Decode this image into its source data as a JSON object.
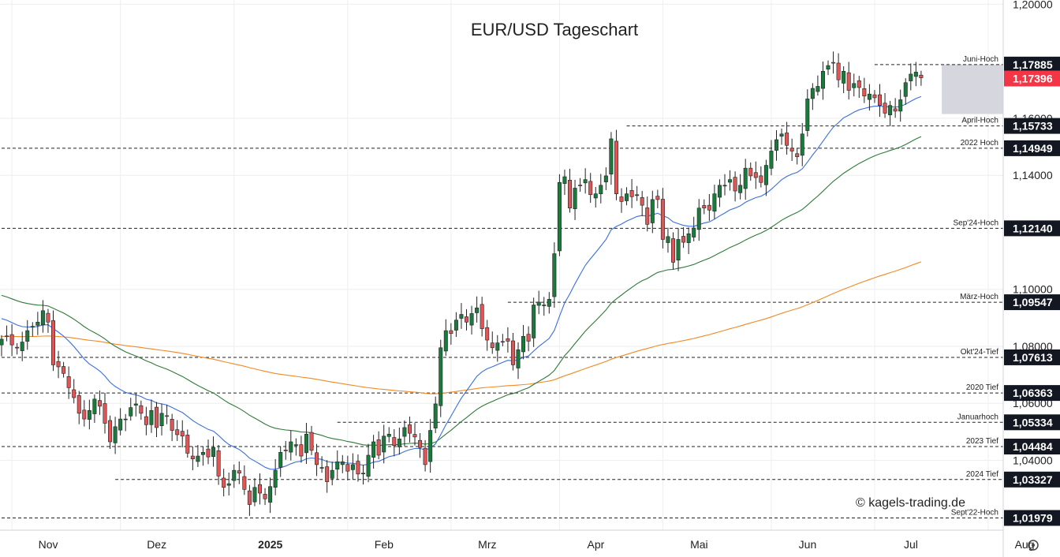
{
  "chart_data": {
    "type": "candlestick",
    "title": "EUR/USD Tageschart",
    "copyright": "© kagels-trading.de",
    "colors": {
      "up": "#1a7a3c",
      "down": "#e05656",
      "ema20": "#3a6fdc",
      "ema50": "#2f7a38",
      "ema200": "#f08a24",
      "zone": "#cfd0d8",
      "current_badge": "#f23645",
      "level_badge": "#131722"
    },
    "ylim": [
      1.0155,
      1.2015
    ],
    "y_ticks": [
      "1,20000",
      "1,16000",
      "1,14000",
      "1,10000",
      "1,08000",
      "1,06000",
      "1,04000"
    ],
    "y_tick_values": [
      1.2,
      1.16,
      1.14,
      1.1,
      1.08,
      1.06,
      1.04
    ],
    "x_ticks": [
      {
        "label": "Nov",
        "index": 2,
        "bold": false
      },
      {
        "label": "Dez",
        "index": 23,
        "bold": false
      },
      {
        "label": "2025",
        "index": 45,
        "bold": true
      },
      {
        "label": "Feb",
        "index": 67,
        "bold": false
      },
      {
        "label": "Mrz",
        "index": 87,
        "bold": false
      },
      {
        "label": "Apr",
        "index": 108,
        "bold": false
      },
      {
        "label": "Mai",
        "index": 128,
        "bold": false
      },
      {
        "label": "Jun",
        "index": 149,
        "bold": false
      },
      {
        "label": "Jul",
        "index": 169,
        "bold": false
      },
      {
        "label": "Aug",
        "index": 191,
        "bold": false
      }
    ],
    "current_price": {
      "value": 1.17396,
      "label": "1,17396"
    },
    "zone": {
      "from_index": 182,
      "y_top": 1.17885,
      "y_bottom": 1.1615
    },
    "levels": [
      {
        "name": "Juni-Hoch",
        "value": 1.17885,
        "label": "1,17885",
        "from_index": 169
      },
      {
        "name": "April-Hoch",
        "value": 1.15733,
        "label": "1,15733",
        "from_index": 121
      },
      {
        "name": "2022 Hoch",
        "value": 1.14949,
        "label": "1,14949",
        "from_index": 0
      },
      {
        "name": "Sep'24-Hoch",
        "value": 1.1214,
        "label": "1,12140",
        "from_index": 0
      },
      {
        "name": "März-Hoch",
        "value": 1.09547,
        "label": "1,09547",
        "from_index": 98
      },
      {
        "name": "Okt'24-Tief",
        "value": 1.07613,
        "label": "1,07613",
        "from_index": 0
      },
      {
        "name": "2020 Tief",
        "value": 1.06363,
        "label": "1,06363",
        "from_index": 0
      },
      {
        "name": "Januarhoch",
        "value": 1.05334,
        "label": "1,05334",
        "from_index": 65
      },
      {
        "name": "2023 Tief",
        "value": 1.04484,
        "label": "1,04484",
        "from_index": 0
      },
      {
        "name": "2024 Tief",
        "value": 1.03327,
        "label": "1,03327",
        "from_index": 22
      },
      {
        "name": "Sept'22-Hoch",
        "value": 1.01979,
        "label": "1,01979",
        "from_index": 0
      }
    ],
    "closes": [
      1.0825,
      1.0835,
      1.0805,
      1.0795,
      1.0815,
      1.0855,
      1.087,
      1.0885,
      1.0925,
      1.0885,
      1.0735,
      1.0728,
      1.0705,
      1.0655,
      1.062,
      1.0565,
      1.0545,
      1.0575,
      1.0615,
      1.059,
      1.053,
      1.0465,
      1.0518,
      1.0545,
      1.0545,
      1.0585,
      1.0598,
      1.0565,
      1.0525,
      1.0575,
      1.0515,
      1.0565,
      1.0555,
      1.0505,
      1.049,
      1.0485,
      1.0425,
      1.0405,
      1.0415,
      1.0428,
      1.0412,
      1.0445,
      1.0345,
      1.0305,
      1.0318,
      1.0365,
      1.0355,
      1.0298,
      1.0245,
      1.0305,
      1.0285,
      1.0265,
      1.0308,
      1.0365,
      1.0428,
      1.0435,
      1.0465,
      1.0455,
      1.0415,
      1.0492,
      1.0435,
      1.0385,
      1.0375,
      1.0325,
      1.0365,
      1.0395,
      1.0395,
      1.0362,
      1.0385,
      1.0352,
      1.0355,
      1.0418,
      1.0465,
      1.0418,
      1.0485,
      1.0492,
      1.0452,
      1.0475,
      1.0515,
      1.0495,
      1.0482,
      1.0445,
      1.0385,
      1.0505,
      1.0598,
      1.0795,
      1.0855,
      1.0845,
      1.0892,
      1.0912,
      1.0885,
      1.0915,
      1.0935,
      1.0862,
      1.0822,
      1.0795,
      1.0812,
      1.0815,
      1.0818,
      1.0735,
      1.0788,
      1.0835,
      1.0818,
      1.0945,
      1.0955,
      1.0945,
      1.0965,
      1.1125,
      1.1375,
      1.1395,
      1.1285,
      1.1355,
      1.1365,
      1.1385,
      1.1332,
      1.1335,
      1.1365,
      1.1398,
      1.1528,
      1.1335,
      1.1308,
      1.1335,
      1.1325,
      1.1332,
      1.1295,
      1.1228,
      1.1315,
      1.1315,
      1.1175,
      1.1185,
      1.1095,
      1.1175,
      1.1165,
      1.1195,
      1.1215,
      1.1285,
      1.1285,
      1.1278,
      1.1335,
      1.1365,
      1.1365,
      1.1385,
      1.1345,
      1.1365,
      1.1425,
      1.1398,
      1.1392,
      1.1375,
      1.1435,
      1.1485,
      1.1525,
      1.1545,
      1.1505,
      1.1485,
      1.1465,
      1.1545,
      1.1668,
      1.1705,
      1.1712,
      1.1765,
      1.1785,
      1.1795,
      1.1735,
      1.1765,
      1.1698,
      1.1722,
      1.1708,
      1.1678,
      1.1685,
      1.1672,
      1.1645,
      1.1618,
      1.1645,
      1.1625,
      1.1665,
      1.1725,
      1.1755,
      1.1762,
      1.1742
    ],
    "ema20_last": 1.1705,
    "ema50_last": 1.1548,
    "ema200_last": 1.0915
  }
}
